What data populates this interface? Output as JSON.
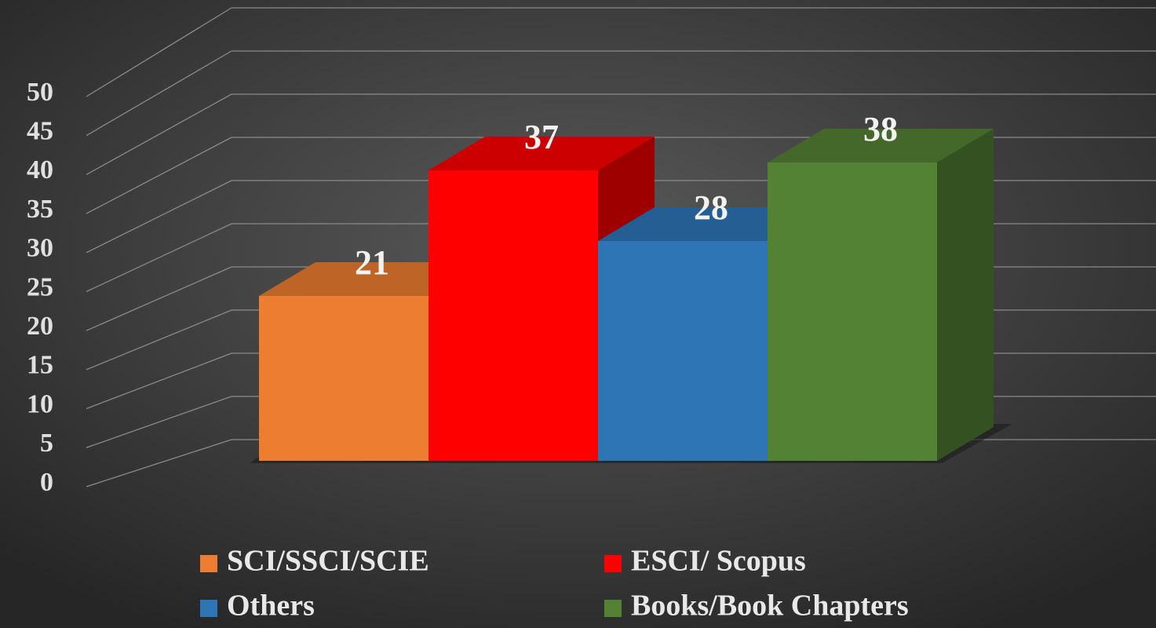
{
  "chart_data": {
    "type": "bar3d",
    "series": [
      {
        "name": "SCI/SSCI/SCIE",
        "color": "#ed7d31",
        "values": [
          21
        ]
      },
      {
        "name": "ESCI/ Scopus",
        "color": "#ff0000",
        "values": [
          37
        ]
      },
      {
        "name": "Others",
        "color": "#2e75b6",
        "values": [
          28
        ]
      },
      {
        "name": "Books/Book Chapters",
        "color": "#548235",
        "values": [
          38
        ]
      }
    ],
    "ylim": [
      0,
      50
    ],
    "yticks": [
      0,
      5,
      10,
      15,
      20,
      25,
      30,
      35,
      40,
      45,
      50
    ],
    "grid": true,
    "legend": "bottom"
  }
}
